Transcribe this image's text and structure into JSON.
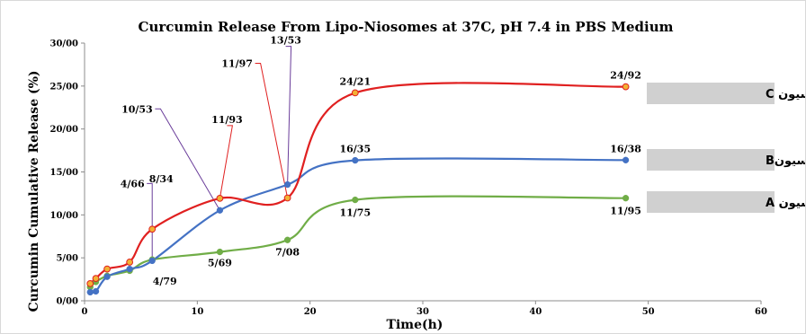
{
  "chart_data": {
    "type": "line",
    "title": "Curcumin Release From Lipo-Niosomes at 37C, pH 7.4 in PBS Medium",
    "xlabel": "Time(h)",
    "ylabel": "Curcumin Cumulative Release (%)",
    "xlim": [
      0,
      60
    ],
    "ylim": [
      0,
      30
    ],
    "x_ticks": [
      "0",
      "10",
      "20",
      "30",
      "40",
      "50",
      "60"
    ],
    "y_ticks": [
      "0/00",
      "5/00",
      "10/00",
      "15/00",
      "20/00",
      "25/00",
      "30/00"
    ],
    "grid": false,
    "legend_position": "right",
    "series": [
      {
        "name": "فرمولاسیون C",
        "color": "#e02020",
        "marker_color": "#f2b134",
        "x": [
          0.5,
          1,
          2,
          4,
          6,
          12,
          18,
          24,
          48
        ],
        "y": [
          2.0,
          2.6,
          3.7,
          4.5,
          8.34,
          11.93,
          11.97,
          24.21,
          24.92
        ]
      },
      {
        "name": "فرمولاسیونB",
        "color": "#4472c4",
        "marker_color": "#4472c4",
        "x": [
          0.5,
          1,
          2,
          4,
          6,
          12,
          18,
          24,
          48
        ],
        "y": [
          1.0,
          1.1,
          2.8,
          3.7,
          4.66,
          10.53,
          13.53,
          16.35,
          16.38
        ]
      },
      {
        "name": "فرمولاسیون A",
        "color": "#70ad47",
        "marker_color": "#70ad47",
        "x": [
          0.5,
          1,
          2,
          4,
          6,
          12,
          18,
          24,
          48
        ],
        "y": [
          1.6,
          2.2,
          2.9,
          3.5,
          4.79,
          5.69,
          7.08,
          11.75,
          11.95
        ]
      }
    ],
    "annotations": [
      {
        "text": "24/92",
        "x": 48,
        "y": 24.92
      },
      {
        "text": "24/21",
        "x": 24,
        "y": 24.21
      },
      {
        "text": "16/38",
        "x": 48,
        "y": 16.38
      },
      {
        "text": "16/35",
        "x": 24,
        "y": 16.35
      },
      {
        "text": "11/75",
        "x": 24,
        "y": 11.75
      },
      {
        "text": "11/95",
        "x": 48,
        "y": 11.95
      },
      {
        "text": "7/08",
        "x": 18,
        "y": 7.08
      },
      {
        "text": "5/69",
        "x": 12,
        "y": 5.69
      },
      {
        "text": "4/79",
        "x": 6,
        "y": 4.79
      },
      {
        "text": "8/34",
        "x": 6,
        "y": 8.34
      },
      {
        "text": "4/66",
        "x": 6,
        "y": 4.66
      },
      {
        "text": "11/93",
        "x": 12,
        "y": 11.93
      },
      {
        "text": "10/53",
        "x": 12,
        "y": 10.53
      },
      {
        "text": "11/97",
        "x": 18,
        "y": 11.97
      },
      {
        "text": "13/53",
        "x": 18,
        "y": 13.53
      }
    ]
  }
}
